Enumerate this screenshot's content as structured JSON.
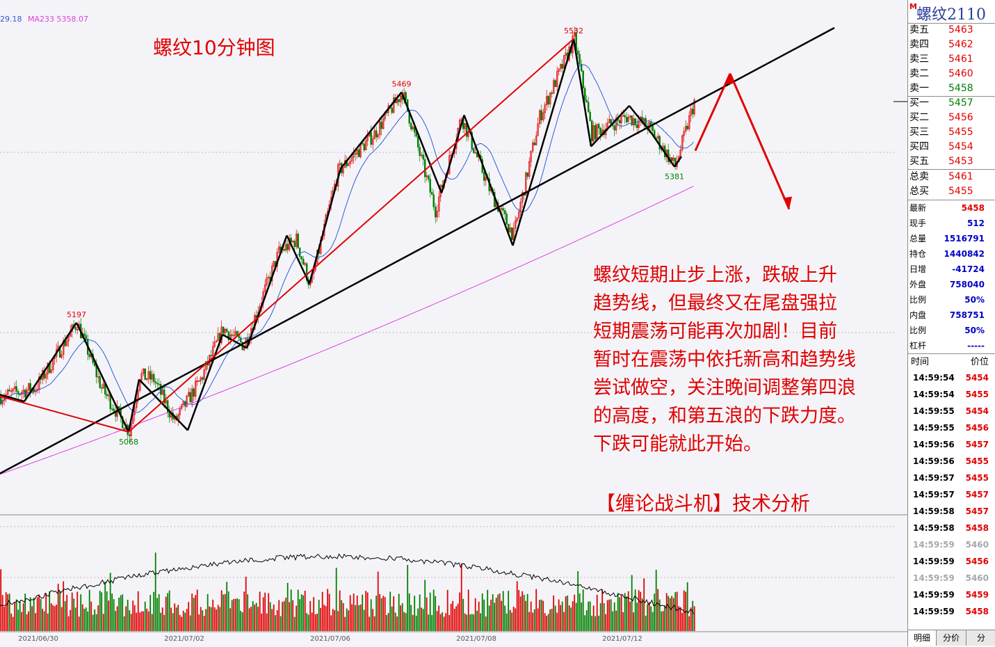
{
  "chart_title": "螺纹10分钟图",
  "ma_labels": [
    {
      "text": "29.18",
      "color": "#2e5bd9"
    },
    {
      "text": "MA233 5358.07",
      "color": "#e040e0"
    }
  ],
  "annotation_lines": [
    "螺纹短期止步上涨，跌破上升",
    "趋势线，但最终又在尾盘强拉",
    "短期震荡可能再次加剧！目前",
    "暂时在震荡中依托新高和趋势线",
    "尝试做空，关注晚间调整第四浪",
    "的高度，和第五浪的下跌力度。",
    "下跌可能就此开始。"
  ],
  "brand": "【缠论战斗机】技术分析",
  "colors": {
    "up": "#e00000",
    "down": "#008000",
    "trend": "#000000",
    "wave": "#e00000",
    "ma_fast": "#2e5bd9",
    "ma_slow": "#e040e0"
  },
  "chart_data": {
    "type": "candlestick",
    "title": "螺纹10分钟图",
    "x_tick_labels": [
      "2021/06/30",
      "2021/07/02",
      "2021/07/06",
      "2021/07/08",
      "2021/07/12"
    ],
    "price_levels": [
      {
        "label": "5197",
        "x_index": 44,
        "price": 5197,
        "kind": "high"
      },
      {
        "label": "5068",
        "x_index": 74,
        "price": 5068,
        "kind": "low"
      },
      {
        "label": "5469",
        "x_index": 231,
        "price": 5469,
        "kind": "high"
      },
      {
        "label": "5532",
        "x_index": 330,
        "price": 5532,
        "kind": "high"
      },
      {
        "label": "5381",
        "x_index": 388,
        "price": 5381,
        "kind": "low"
      }
    ],
    "series": [
      {
        "name": "MA233",
        "last_value": 5358.07
      }
    ],
    "price_range": [
      5040,
      5545
    ]
  },
  "quote_panel": {
    "symbol": "螺纹2110",
    "symbol_badge": "M",
    "asks": [
      {
        "label": "卖五",
        "price": "5463"
      },
      {
        "label": "卖四",
        "price": "5462"
      },
      {
        "label": "卖三",
        "price": "5461"
      },
      {
        "label": "卖二",
        "price": "5460"
      },
      {
        "label": "卖一",
        "price": "5458"
      }
    ],
    "bids": [
      {
        "label": "买一",
        "price": "5457"
      },
      {
        "label": "买二",
        "price": "5456"
      },
      {
        "label": "买三",
        "price": "5455"
      },
      {
        "label": "买四",
        "price": "5454"
      },
      {
        "label": "买五",
        "price": "5453"
      }
    ],
    "totals": [
      {
        "label": "总卖",
        "price": "5461"
      },
      {
        "label": "总买",
        "price": "5455"
      }
    ],
    "stats": [
      {
        "label": "最新",
        "value": "5458",
        "color": "red"
      },
      {
        "label": "现手",
        "value": "512",
        "color": "blue"
      },
      {
        "label": "总量",
        "value": "1516791",
        "color": "blue"
      },
      {
        "label": "持仓",
        "value": "1440842",
        "color": "blue"
      },
      {
        "label": "日增",
        "value": "-41724",
        "color": "blue"
      },
      {
        "label": "外盘",
        "value": "758040",
        "color": "blue"
      },
      {
        "label": "比例",
        "value": "50%",
        "color": "blue"
      },
      {
        "label": "内盘",
        "value": "758751",
        "color": "blue"
      },
      {
        "label": "比例",
        "value": "50%",
        "color": "blue"
      },
      {
        "label": "杠杆",
        "value": "-----",
        "color": "blue"
      }
    ],
    "ticks_header": {
      "time": "时间",
      "price": "价位"
    },
    "ticks": [
      {
        "time": "14:59:54",
        "price": "5454",
        "gray": false
      },
      {
        "time": "14:59:54",
        "price": "5455",
        "gray": false
      },
      {
        "time": "14:59:55",
        "price": "5454",
        "gray": false
      },
      {
        "time": "14:59:55",
        "price": "5456",
        "gray": false
      },
      {
        "time": "14:59:56",
        "price": "5457",
        "gray": false
      },
      {
        "time": "14:59:56",
        "price": "5455",
        "gray": false
      },
      {
        "time": "14:59:57",
        "price": "5455",
        "gray": false
      },
      {
        "time": "14:59:57",
        "price": "5457",
        "gray": false
      },
      {
        "time": "14:59:58",
        "price": "5457",
        "gray": false
      },
      {
        "time": "14:59:58",
        "price": "5458",
        "gray": false
      },
      {
        "time": "14:59:59",
        "price": "5460",
        "gray": true
      },
      {
        "time": "14:59:59",
        "price": "5456",
        "gray": false
      },
      {
        "time": "14:59:59",
        "price": "5460",
        "gray": true
      },
      {
        "time": "14:59:59",
        "price": "5459",
        "gray": false
      },
      {
        "time": "14:59:59",
        "price": "5458",
        "gray": false
      }
    ],
    "tabs": [
      "明细",
      "分价",
      "分"
    ]
  }
}
